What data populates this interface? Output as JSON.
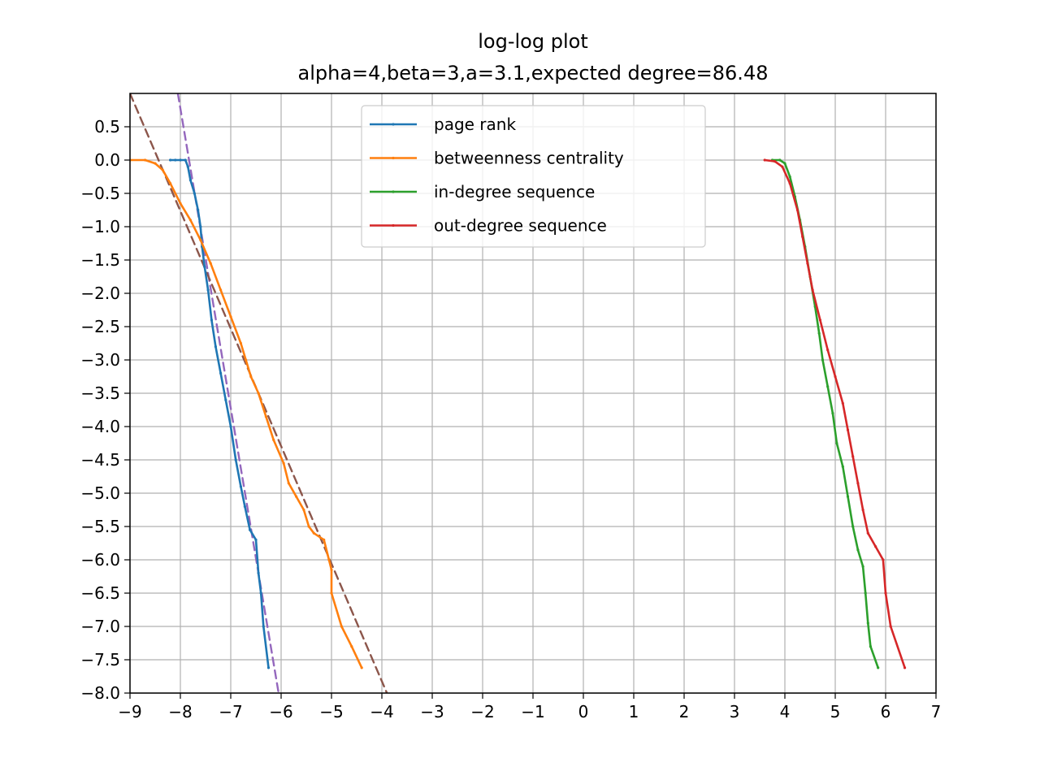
{
  "chart_data": {
    "type": "line",
    "title": "log-log plot",
    "subtitle": "alpha=4,beta=3,a=3.1,expected degree=86.48",
    "xlabel": "",
    "ylabel": "",
    "xlim": [
      -9,
      7
    ],
    "ylim": [
      -8,
      1
    ],
    "x_ticks": [
      "−9",
      "−8",
      "−7",
      "−6",
      "−5",
      "−4",
      "−3",
      "−2",
      "−1",
      "0",
      "1",
      "2",
      "3",
      "4",
      "5",
      "6",
      "7"
    ],
    "y_ticks": [
      "0.5",
      "0.0",
      "−0.5",
      "−1.0",
      "−1.5",
      "−2.0",
      "−2.5",
      "−3.0",
      "−3.5",
      "−4.0",
      "−4.5",
      "−5.0",
      "−5.5",
      "−6.0",
      "−6.5",
      "−7.0",
      "−7.5",
      "−8.0"
    ],
    "grid": true,
    "legend_position": "upper-center",
    "series": [
      {
        "name": "page rank",
        "color": "#1f77b4",
        "points": [
          [
            -8.2,
            0.0
          ],
          [
            -8.1,
            0.0
          ],
          [
            -8.0,
            0.0
          ],
          [
            -7.9,
            0.0
          ],
          [
            -7.85,
            -0.1
          ],
          [
            -7.8,
            -0.3
          ],
          [
            -7.72,
            -0.5
          ],
          [
            -7.65,
            -0.75
          ],
          [
            -7.6,
            -1.0
          ],
          [
            -7.57,
            -1.3
          ],
          [
            -7.52,
            -1.6
          ],
          [
            -7.45,
            -1.95
          ],
          [
            -7.38,
            -2.4
          ],
          [
            -7.3,
            -2.8
          ],
          [
            -7.2,
            -3.2
          ],
          [
            -7.1,
            -3.6
          ],
          [
            -7.0,
            -4.0
          ],
          [
            -6.9,
            -4.5
          ],
          [
            -6.8,
            -4.9
          ],
          [
            -6.72,
            -5.2
          ],
          [
            -6.62,
            -5.55
          ],
          [
            -6.5,
            -5.7
          ],
          [
            -6.45,
            -6.2
          ],
          [
            -6.4,
            -6.5
          ],
          [
            -6.35,
            -7.0
          ],
          [
            -6.25,
            -7.62
          ]
        ]
      },
      {
        "name": "betweenness centrality",
        "color": "#ff7f0e",
        "points": [
          [
            -9.0,
            0.0
          ],
          [
            -8.7,
            0.0
          ],
          [
            -8.5,
            -0.05
          ],
          [
            -8.35,
            -0.15
          ],
          [
            -8.2,
            -0.35
          ],
          [
            -8.0,
            -0.65
          ],
          [
            -7.8,
            -0.9
          ],
          [
            -7.6,
            -1.2
          ],
          [
            -7.4,
            -1.55
          ],
          [
            -7.2,
            -1.95
          ],
          [
            -7.0,
            -2.35
          ],
          [
            -6.8,
            -2.75
          ],
          [
            -6.7,
            -3.0
          ],
          [
            -6.6,
            -3.25
          ],
          [
            -6.45,
            -3.5
          ],
          [
            -6.3,
            -3.85
          ],
          [
            -6.15,
            -4.2
          ],
          [
            -5.95,
            -4.55
          ],
          [
            -5.85,
            -4.85
          ],
          [
            -5.7,
            -5.05
          ],
          [
            -5.55,
            -5.25
          ],
          [
            -5.45,
            -5.5
          ],
          [
            -5.35,
            -5.6
          ],
          [
            -5.15,
            -5.7
          ],
          [
            -5.05,
            -6.0
          ],
          [
            -5.0,
            -6.15
          ],
          [
            -5.0,
            -6.5
          ],
          [
            -4.8,
            -7.0
          ],
          [
            -4.6,
            -7.3
          ],
          [
            -4.4,
            -7.62
          ]
        ]
      },
      {
        "name": "in-degree sequence",
        "color": "#2ca02c",
        "points": [
          [
            3.75,
            0.0
          ],
          [
            3.9,
            0.0
          ],
          [
            4.0,
            -0.05
          ],
          [
            4.1,
            -0.25
          ],
          [
            4.2,
            -0.55
          ],
          [
            4.3,
            -0.9
          ],
          [
            4.4,
            -1.3
          ],
          [
            4.5,
            -1.75
          ],
          [
            4.6,
            -2.2
          ],
          [
            4.68,
            -2.6
          ],
          [
            4.75,
            -3.0
          ],
          [
            4.85,
            -3.4
          ],
          [
            4.95,
            -3.8
          ],
          [
            5.03,
            -4.25
          ],
          [
            5.15,
            -4.6
          ],
          [
            5.25,
            -5.05
          ],
          [
            5.35,
            -5.5
          ],
          [
            5.45,
            -5.85
          ],
          [
            5.55,
            -6.1
          ],
          [
            5.6,
            -6.5
          ],
          [
            5.65,
            -6.95
          ],
          [
            5.7,
            -7.3
          ],
          [
            5.85,
            -7.62
          ]
        ]
      },
      {
        "name": "out-degree sequence",
        "color": "#d62728",
        "points": [
          [
            3.6,
            0.0
          ],
          [
            3.8,
            -0.02
          ],
          [
            3.95,
            -0.1
          ],
          [
            4.1,
            -0.35
          ],
          [
            4.25,
            -0.75
          ],
          [
            4.35,
            -1.15
          ],
          [
            4.45,
            -1.55
          ],
          [
            4.55,
            -1.95
          ],
          [
            4.7,
            -2.4
          ],
          [
            4.85,
            -2.85
          ],
          [
            5.0,
            -3.25
          ],
          [
            5.15,
            -3.65
          ],
          [
            5.25,
            -4.05
          ],
          [
            5.35,
            -4.45
          ],
          [
            5.45,
            -4.85
          ],
          [
            5.55,
            -5.25
          ],
          [
            5.65,
            -5.6
          ],
          [
            5.8,
            -5.8
          ],
          [
            5.95,
            -6.0
          ],
          [
            6.0,
            -6.5
          ],
          [
            6.1,
            -7.0
          ],
          [
            6.38,
            -7.62
          ]
        ]
      },
      {
        "name": "",
        "color": "#9467bd",
        "dashed": true,
        "points": [
          [
            -8.05,
            1.0
          ],
          [
            -6.05,
            -8.0
          ]
        ]
      },
      {
        "name": "",
        "color": "#8c564b",
        "dashed": true,
        "points": [
          [
            -9.0,
            1.0
          ],
          [
            -3.9,
            -8.0
          ]
        ]
      }
    ]
  }
}
